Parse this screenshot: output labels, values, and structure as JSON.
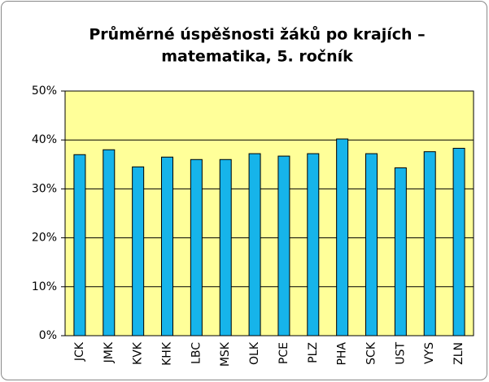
{
  "chart_data": {
    "type": "bar",
    "title": [
      "Průměrné úspěšnosti žáků po krajích –",
      "matematika, 5. ročník"
    ],
    "categories": [
      "JCK",
      "JMK",
      "KVK",
      "KHK",
      "LBC",
      "MSK",
      "OLK",
      "PCE",
      "PLZ",
      "PHA",
      "SCK",
      "UST",
      "VYS",
      "ZLN"
    ],
    "values": [
      37,
      38,
      34.5,
      36.5,
      36,
      36,
      37.2,
      36.7,
      37.2,
      40.2,
      37.2,
      34.3,
      37.6,
      38.3
    ],
    "color": "#16b4ea",
    "ylim": [
      0,
      50
    ],
    "yticks": [
      {
        "value": 0,
        "label": "0%"
      },
      {
        "value": 10,
        "label": "10%"
      },
      {
        "value": 20,
        "label": "20%"
      },
      {
        "value": 30,
        "label": "30%"
      },
      {
        "value": 40,
        "label": "40%"
      },
      {
        "value": 50,
        "label": "50%"
      }
    ],
    "grid": true
  }
}
